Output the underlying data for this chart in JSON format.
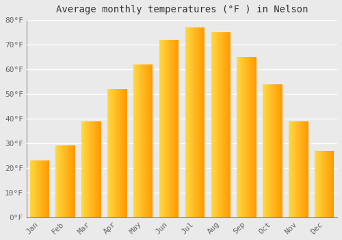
{
  "title": "Average monthly temperatures (°F ) in Nelson",
  "months": [
    "Jan",
    "Feb",
    "Mar",
    "Apr",
    "May",
    "Jun",
    "Jul",
    "Aug",
    "Sep",
    "Oct",
    "Nov",
    "Dec"
  ],
  "values": [
    23,
    29,
    39,
    52,
    62,
    72,
    77,
    75,
    65,
    54,
    39,
    27
  ],
  "bar_color_left": "#FFD040",
  "bar_color_right": "#FFA000",
  "ylim": [
    0,
    80
  ],
  "yticks": [
    0,
    10,
    20,
    30,
    40,
    50,
    60,
    70,
    80
  ],
  "ytick_labels": [
    "0°F",
    "10°F",
    "20°F",
    "30°F",
    "40°F",
    "50°F",
    "60°F",
    "70°F",
    "80°F"
  ],
  "background_color": "#EAEAEA",
  "grid_color": "#FFFFFF",
  "title_fontsize": 10,
  "tick_fontsize": 8,
  "font_family": "monospace"
}
